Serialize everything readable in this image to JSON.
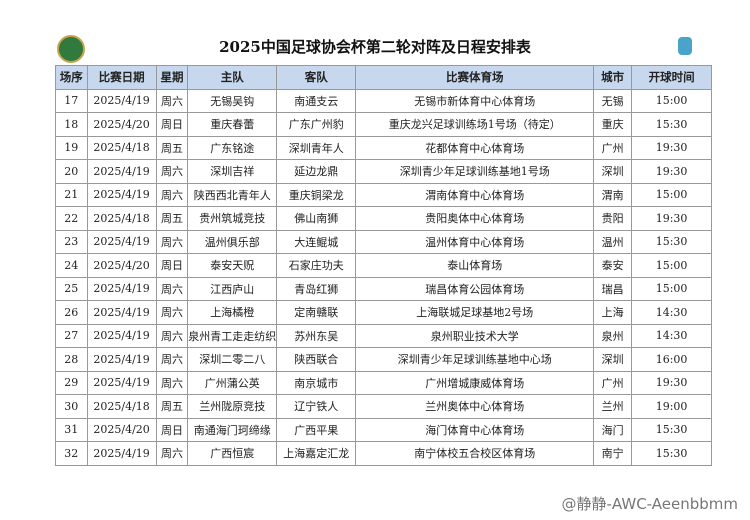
{
  "header": {
    "title": "2025中国足球协会杯第二轮对阵及日程安排表"
  },
  "table": {
    "columns": [
      "场序",
      "比赛日期",
      "星期",
      "主队",
      "客队",
      "比赛体育场",
      "城市",
      "开球时间"
    ],
    "rows": [
      [
        "17",
        "2025/4/19",
        "周六",
        "无锡吴钩",
        "南通支云",
        "无锡市新体育中心体育场",
        "无锡",
        "15:00"
      ],
      [
        "18",
        "2025/4/20",
        "周日",
        "重庆春蕾",
        "广东广州豹",
        "重庆龙兴足球训练场1号场（待定）",
        "重庆",
        "15:30"
      ],
      [
        "19",
        "2025/4/18",
        "周五",
        "广东铭途",
        "深圳青年人",
        "花都体育中心体育场",
        "广州",
        "19:30"
      ],
      [
        "20",
        "2025/4/19",
        "周六",
        "深圳吉祥",
        "延边龙鼎",
        "深圳青少年足球训练基地1号场",
        "深圳",
        "19:30"
      ],
      [
        "21",
        "2025/4/19",
        "周六",
        "陕西西北青年人",
        "重庆铜梁龙",
        "渭南体育中心体育场",
        "渭南",
        "15:00"
      ],
      [
        "22",
        "2025/4/18",
        "周五",
        "贵州筑城竞技",
        "佛山南狮",
        "贵阳奥体中心体育场",
        "贵阳",
        "19:30"
      ],
      [
        "23",
        "2025/4/19",
        "周六",
        "温州俱乐部",
        "大连鲲城",
        "温州体育中心体育场",
        "温州",
        "15:30"
      ],
      [
        "24",
        "2025/4/20",
        "周日",
        "泰安天贶",
        "石家庄功夫",
        "泰山体育场",
        "泰安",
        "15:00"
      ],
      [
        "25",
        "2025/4/19",
        "周六",
        "江西庐山",
        "青岛红狮",
        "瑞昌体育公园体育场",
        "瑞昌",
        "15:00"
      ],
      [
        "26",
        "2025/4/19",
        "周六",
        "上海橘橙",
        "定南赣联",
        "上海联城足球基地2号场",
        "上海",
        "14:30"
      ],
      [
        "27",
        "2025/4/19",
        "周六",
        "泉州青工走走纺织",
        "苏州东吴",
        "泉州职业技术大学",
        "泉州",
        "14:30"
      ],
      [
        "28",
        "2025/4/19",
        "周六",
        "深圳二零二八",
        "陕西联合",
        "深圳青少年足球训练基地中心场",
        "深圳",
        "16:00"
      ],
      [
        "29",
        "2025/4/19",
        "周六",
        "广州蒲公英",
        "南京城市",
        "广州增城康威体育场",
        "广州",
        "19:30"
      ],
      [
        "30",
        "2025/4/18",
        "周五",
        "兰州陇原竞技",
        "辽宁铁人",
        "兰州奥体中心体育场",
        "兰州",
        "19:00"
      ],
      [
        "31",
        "2025/4/20",
        "周日",
        "南通海门珂缔缘",
        "广西平果",
        "海门体育中心体育场",
        "海门",
        "15:30"
      ],
      [
        "32",
        "2025/4/19",
        "周六",
        "广西恒宸",
        "上海嘉定汇龙",
        "南宁体校五合校区体育场",
        "南宁",
        "15:30"
      ]
    ]
  },
  "watermark": "@静静-AWC-Aeenbbmm"
}
